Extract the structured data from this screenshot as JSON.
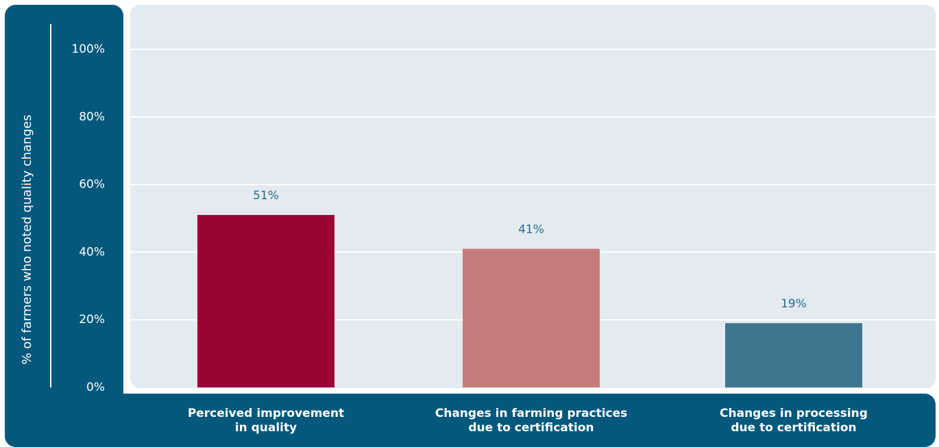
{
  "chart_data": {
    "type": "bar",
    "y_axis_label": "% of farmers who noted quality changes",
    "categories": [
      "Perceived improvement\nin quality",
      "Changes in farming practices\ndue to certification",
      "Changes in processing\ndue to certification"
    ],
    "values": [
      51,
      41,
      19
    ],
    "value_labels": [
      "51%",
      "41%",
      "19%"
    ],
    "colors": [
      "#9b0533",
      "#c77c7c",
      "#3e7690"
    ],
    "ylim": [
      0,
      100
    ],
    "yticks": [
      {
        "value": 0,
        "label": "0%"
      },
      {
        "value": 20,
        "label": "20%"
      },
      {
        "value": 40,
        "label": "40%"
      },
      {
        "value": 60,
        "label": "60%"
      },
      {
        "value": 80,
        "label": "80%"
      },
      {
        "value": 100,
        "label": "100%"
      }
    ],
    "grid": true
  }
}
